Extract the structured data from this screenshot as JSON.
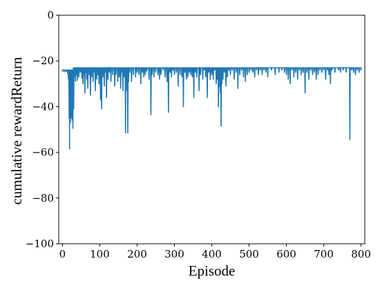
{
  "chart_data": {
    "type": "line",
    "xlabel": "Episode",
    "ylabel": "cumulative rewardReturn",
    "xlim": [
      -10,
      810
    ],
    "ylim": [
      -100,
      0
    ],
    "xticks": [
      0,
      100,
      200,
      300,
      400,
      500,
      600,
      700,
      800
    ],
    "yticks": [
      0,
      -20,
      -40,
      -60,
      -80,
      -100
    ],
    "xtick_labels": [
      "0",
      "100",
      "200",
      "300",
      "400",
      "500",
      "600",
      "700",
      "800"
    ],
    "ytick_labels": [
      "0",
      "−20",
      "−40",
      "−60",
      "−80",
      "−100"
    ],
    "grid": false,
    "legend": "none",
    "series": [
      {
        "color": "#1f77b4",
        "baseline": -23,
        "start_level": -24,
        "spikes": [
          [
            0,
            -24.5
          ],
          [
            5,
            -24.8
          ],
          [
            10,
            -24.6
          ],
          [
            14,
            -25.5
          ],
          [
            16,
            -28
          ],
          [
            18,
            -45
          ],
          [
            19,
            -58.5
          ],
          [
            20,
            -37
          ],
          [
            21,
            -47
          ],
          [
            22,
            -31
          ],
          [
            23,
            -45
          ],
          [
            24,
            -36
          ],
          [
            25,
            -40
          ],
          [
            26,
            -46
          ],
          [
            27,
            -43
          ],
          [
            28,
            -49.5
          ],
          [
            29,
            -30
          ],
          [
            30,
            -41
          ],
          [
            32,
            -27
          ],
          [
            35,
            -29
          ],
          [
            38,
            -26
          ],
          [
            40,
            -28.5
          ],
          [
            44,
            -27
          ],
          [
            48,
            -25
          ],
          [
            52,
            -27.5
          ],
          [
            55,
            -30
          ],
          [
            58,
            -26
          ],
          [
            60,
            -34
          ],
          [
            62,
            -25
          ],
          [
            65,
            -28
          ],
          [
            68,
            -32
          ],
          [
            72,
            -26
          ],
          [
            75,
            -35
          ],
          [
            78,
            -27
          ],
          [
            82,
            -29
          ],
          [
            86,
            -25
          ],
          [
            88,
            -33
          ],
          [
            92,
            -28
          ],
          [
            95,
            -26
          ],
          [
            98,
            -30
          ],
          [
            102,
            -37
          ],
          [
            105,
            -41
          ],
          [
            108,
            -27
          ],
          [
            112,
            -31
          ],
          [
            115,
            -25
          ],
          [
            118,
            -36
          ],
          [
            122,
            -28
          ],
          [
            126,
            -25
          ],
          [
            130,
            -29
          ],
          [
            135,
            -26
          ],
          [
            140,
            -31
          ],
          [
            143,
            -26
          ],
          [
            148,
            -29
          ],
          [
            152,
            -27
          ],
          [
            156,
            -32
          ],
          [
            158,
            -25
          ],
          [
            162,
            -33
          ],
          [
            166,
            -27
          ],
          [
            169,
            -51.5
          ],
          [
            171,
            -33
          ],
          [
            173,
            -28
          ],
          [
            175,
            -51.5
          ],
          [
            177,
            -29
          ],
          [
            180,
            -25
          ],
          [
            185,
            -29
          ],
          [
            190,
            -26
          ],
          [
            196,
            -27
          ],
          [
            200,
            -25
          ],
          [
            205,
            -26
          ],
          [
            210,
            -30
          ],
          [
            214,
            -25
          ],
          [
            218,
            -27
          ],
          [
            222,
            -26
          ],
          [
            226,
            -24.5
          ],
          [
            232,
            -28
          ],
          [
            237,
            -43.5
          ],
          [
            240,
            -26
          ],
          [
            245,
            -27
          ],
          [
            250,
            -25
          ],
          [
            256,
            -26
          ],
          [
            260,
            -28
          ],
          [
            264,
            -26
          ],
          [
            270,
            -24
          ],
          [
            275,
            -27
          ],
          [
            280,
            -29
          ],
          [
            284,
            -42.5
          ],
          [
            288,
            -25
          ],
          [
            292,
            -27
          ],
          [
            296,
            -24
          ],
          [
            300,
            -26
          ],
          [
            305,
            -25
          ],
          [
            310,
            -31
          ],
          [
            315,
            -26
          ],
          [
            320,
            -27
          ],
          [
            324,
            -40
          ],
          [
            328,
            -25
          ],
          [
            332,
            -28
          ],
          [
            336,
            -27
          ],
          [
            340,
            -25
          ],
          [
            344,
            -26
          ],
          [
            348,
            -27
          ],
          [
            352,
            -36
          ],
          [
            356,
            -25
          ],
          [
            360,
            -27
          ],
          [
            366,
            -33
          ],
          [
            370,
            -26
          ],
          [
            376,
            -28
          ],
          [
            380,
            -24
          ],
          [
            384,
            -27
          ],
          [
            388,
            -36
          ],
          [
            392,
            -25
          ],
          [
            396,
            -28
          ],
          [
            400,
            -26
          ],
          [
            404,
            -28
          ],
          [
            408,
            -24
          ],
          [
            412,
            -30
          ],
          [
            415,
            -28
          ],
          [
            418,
            -40
          ],
          [
            420,
            -31
          ],
          [
            423,
            -34
          ],
          [
            425,
            -48.5
          ],
          [
            427,
            -30
          ],
          [
            430,
            -28
          ],
          [
            434,
            -25
          ],
          [
            438,
            -31
          ],
          [
            442,
            -27
          ],
          [
            446,
            -24
          ],
          [
            450,
            -26
          ],
          [
            455,
            -24
          ],
          [
            460,
            -28
          ],
          [
            465,
            -25
          ],
          [
            470,
            -32
          ],
          [
            475,
            -26
          ],
          [
            480,
            -24
          ],
          [
            485,
            -27
          ],
          [
            490,
            -29
          ],
          [
            495,
            -26
          ],
          [
            500,
            -25
          ],
          [
            505,
            -24
          ],
          [
            510,
            -25
          ],
          [
            515,
            -27
          ],
          [
            520,
            -24
          ],
          [
            525,
            -26
          ],
          [
            530,
            -24
          ],
          [
            535,
            -26
          ],
          [
            540,
            -24
          ],
          [
            545,
            -25
          ],
          [
            550,
            -27
          ],
          [
            560,
            -24
          ],
          [
            570,
            -26
          ],
          [
            580,
            -25
          ],
          [
            588,
            -24
          ],
          [
            595,
            -25
          ],
          [
            600,
            -26
          ],
          [
            605,
            -28
          ],
          [
            610,
            -30
          ],
          [
            615,
            -24
          ],
          [
            620,
            -27
          ],
          [
            625,
            -25
          ],
          [
            630,
            -28
          ],
          [
            635,
            -24
          ],
          [
            640,
            -26
          ],
          [
            645,
            -25
          ],
          [
            650,
            -34
          ],
          [
            655,
            -25
          ],
          [
            660,
            -28
          ],
          [
            665,
            -24
          ],
          [
            670,
            -26
          ],
          [
            675,
            -25
          ],
          [
            680,
            -28
          ],
          [
            685,
            -26
          ],
          [
            690,
            -24
          ],
          [
            695,
            -25
          ],
          [
            700,
            -24
          ],
          [
            705,
            -28
          ],
          [
            710,
            -24
          ],
          [
            714,
            -26
          ],
          [
            718,
            -30
          ],
          [
            722,
            -24
          ],
          [
            730,
            -25
          ],
          [
            740,
            -24
          ],
          [
            745,
            -25
          ],
          [
            752,
            -24
          ],
          [
            760,
            -25
          ],
          [
            770,
            -54.3
          ],
          [
            775,
            -24
          ],
          [
            780,
            -25
          ],
          [
            785,
            -26
          ],
          [
            790,
            -24
          ],
          [
            795,
            -25
          ],
          [
            800,
            -24
          ]
        ]
      }
    ]
  }
}
